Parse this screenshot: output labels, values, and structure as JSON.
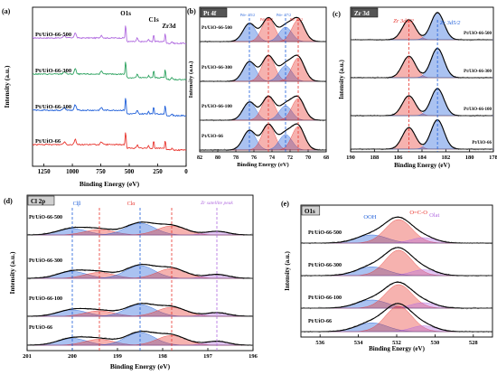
{
  "chart_data": [
    {
      "type": "line",
      "panel": "(a)",
      "xlabel": "Binding Energy (eV)",
      "ylabel": "Intensity (a.u.)",
      "xlim": [
        1350,
        0
      ],
      "x_ticks": [
        1250,
        1000,
        750,
        500,
        250,
        0
      ],
      "peak_labels": [
        {
          "text": "O1s",
          "x": 531
        },
        {
          "text": "C1s",
          "x": 285
        },
        {
          "text": "Zr3d",
          "x": 183
        }
      ],
      "series": [
        {
          "name": "Pt/UiO-66-500",
          "color": "#b06adf"
        },
        {
          "name": "Pt/UiO-66-300",
          "color": "#2ca25f"
        },
        {
          "name": "Pt/UiO-66-100",
          "color": "#1f5fd9"
        },
        {
          "name": "Pt/UiO-66",
          "color": "#e8352e"
        }
      ]
    },
    {
      "type": "line",
      "panel": "(b)",
      "title": "Pt 4f",
      "xlabel": "Binding Energy (eV)",
      "ylabel": "Intensity (a.u.)",
      "xlim": [
        82,
        68
      ],
      "x_ticks": [
        82,
        80,
        78,
        76,
        74,
        72,
        70,
        68
      ],
      "peaks": [
        {
          "center": 76.5,
          "color": "#1f5fd9",
          "label": "Ptδ+ 4f5/2"
        },
        {
          "center": 74.4,
          "color": "#e8352e",
          "label": "Pt0 4f5/2"
        },
        {
          "center": 72.5,
          "color": "#1f5fd9",
          "label": "Ptδ+ 4f7/2"
        },
        {
          "center": 71.1,
          "color": "#e8352e",
          "label": "Pt0 4f7/2"
        }
      ],
      "series": [
        {
          "name": "Pt/UiO-66-500"
        },
        {
          "name": "Pt/UiO-66-300"
        },
        {
          "name": "Pt/UiO-66-100"
        },
        {
          "name": "Pt/UiO-66"
        }
      ]
    },
    {
      "type": "line",
      "panel": "(c)",
      "title": "Zr 3d",
      "xlabel": "Binding Energy (eV)",
      "ylabel": "Intensity (a.u.)",
      "xlim": [
        190,
        178
      ],
      "x_ticks": [
        190,
        188,
        186,
        184,
        182,
        180,
        178
      ],
      "peaks": [
        {
          "center": 185.1,
          "color": "#e8352e",
          "label": "Zr 3d3/2"
        },
        {
          "center": 182.7,
          "color": "#1f5fd9",
          "label": "Zr 3d5/2"
        }
      ],
      "series": [
        {
          "name": "Pt/UiO-66-500"
        },
        {
          "name": "Pt/UiO-66-300"
        },
        {
          "name": "Pt/UiO-66-100"
        },
        {
          "name": "Pt/UiO-66"
        }
      ]
    },
    {
      "type": "line",
      "panel": "(d)",
      "title": "Cl 2p",
      "xlabel": "Binding Energy (eV)",
      "ylabel": "Intensity (a.u.)",
      "xlim": [
        201,
        196
      ],
      "x_ticks": [
        201,
        200,
        199,
        198,
        197,
        196
      ],
      "annotations": [
        "Clβ",
        "Clα",
        "Zr satellite peak"
      ],
      "peaks": [
        {
          "center": 200.0,
          "color": "#1f5fd9"
        },
        {
          "center": 199.4,
          "color": "#e8352e"
        },
        {
          "center": 198.5,
          "color": "#1f5fd9"
        },
        {
          "center": 197.8,
          "color": "#e8352e"
        },
        {
          "center": 196.8,
          "color": "#b06adf"
        }
      ],
      "series": [
        {
          "name": "Pt/UiO-66-500"
        },
        {
          "name": "Pt/UiO-66-300"
        },
        {
          "name": "Pt/UiO-66-100"
        },
        {
          "name": "Pt/UiO-66"
        }
      ]
    },
    {
      "type": "line",
      "panel": "(e)",
      "title": "O1s",
      "xlabel": "Binding Energy (eV)",
      "ylabel": "Intensity (a.u.)",
      "xlim": [
        537,
        527
      ],
      "x_ticks": [
        536,
        534,
        532,
        530,
        528
      ],
      "peaks": [
        {
          "center": 533.3,
          "color": "#1f5fd9",
          "label": "OOH"
        },
        {
          "center": 531.9,
          "color": "#e8352e",
          "label": "O=C-O"
        },
        {
          "center": 530.6,
          "color": "#b06adf",
          "label": "Olat"
        }
      ],
      "series": [
        {
          "name": "Pt/UiO-66-500"
        },
        {
          "name": "Pt/UiO-66-300"
        },
        {
          "name": "Pt/UiO-66-100"
        },
        {
          "name": "Pt/UiO-66"
        }
      ]
    }
  ]
}
